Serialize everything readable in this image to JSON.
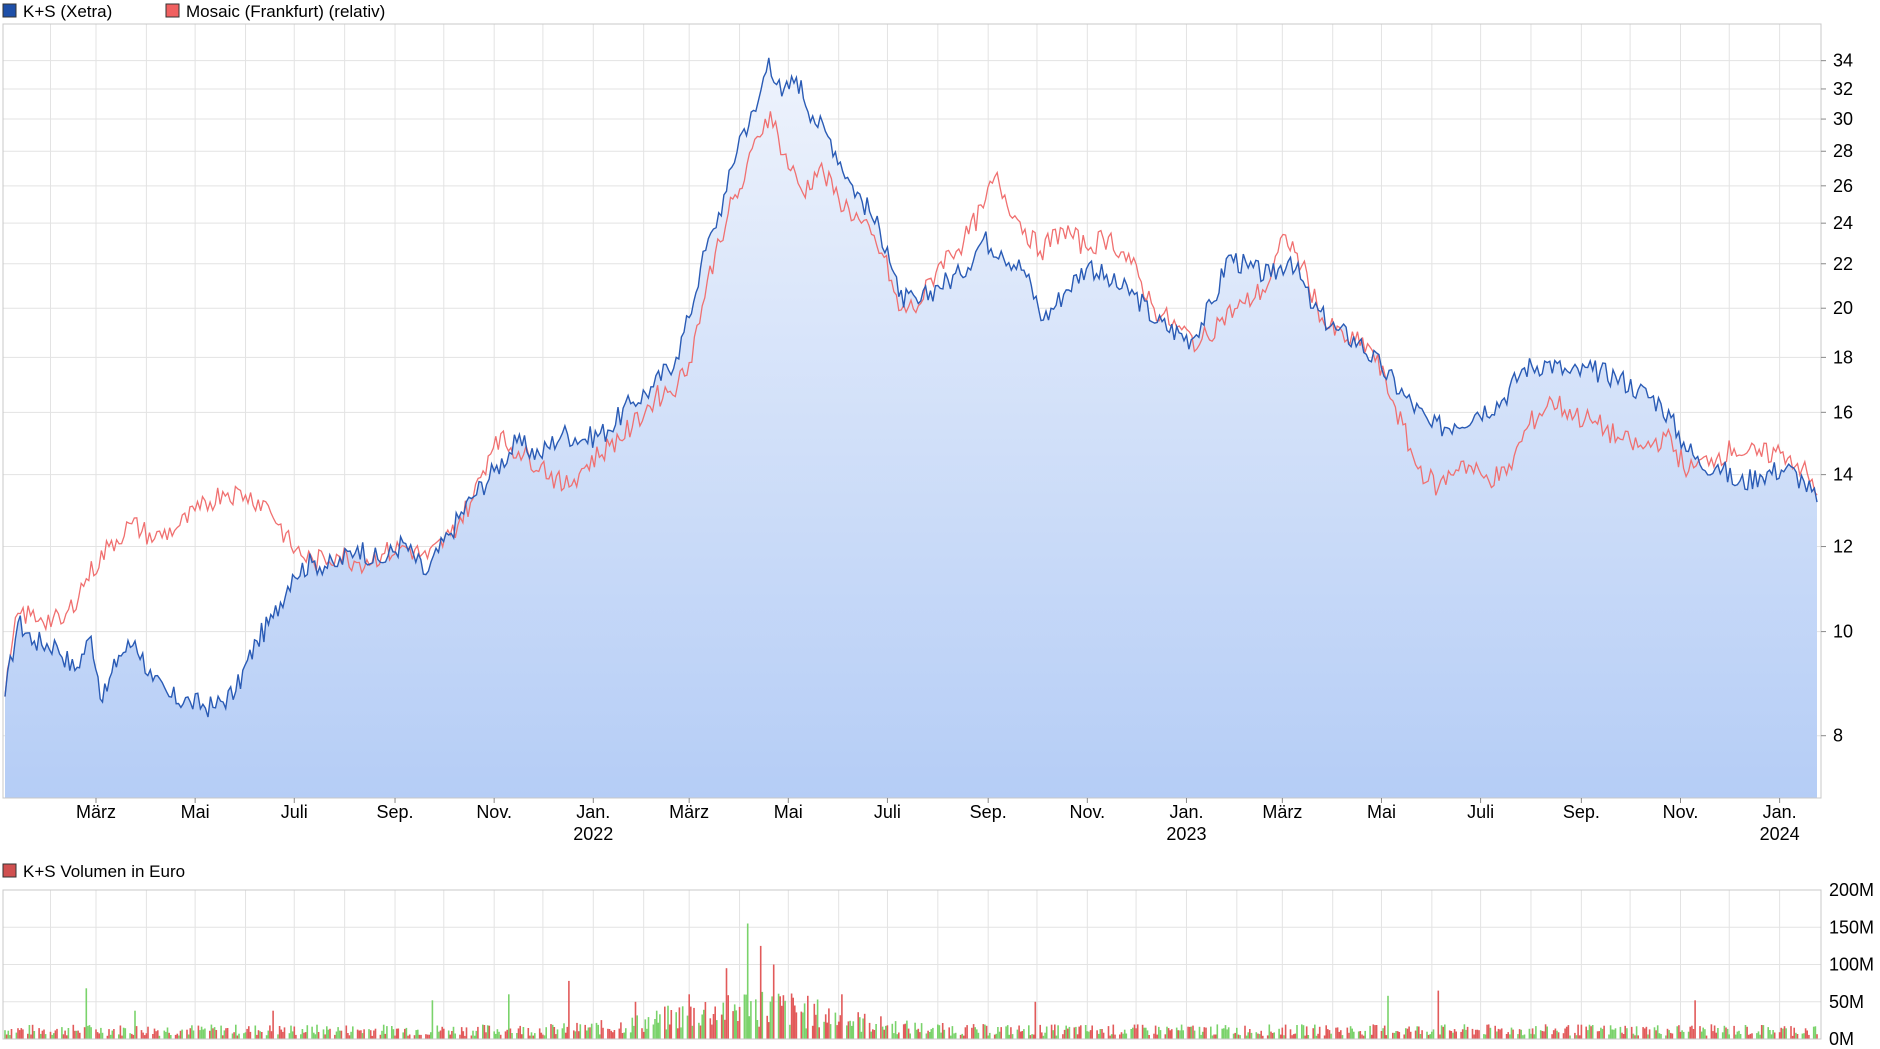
{
  "legend": {
    "series1": "K+S (Xetra)",
    "series2": "Mosaic (Frankfurt) (relativ)",
    "volume": "K+S Volumen in Euro"
  },
  "colors": {
    "series1_line": "#2a5bb5",
    "series1_box": "#1e4fa8",
    "series2_line": "#f07070",
    "series2_box": "#f06060",
    "volume_box": "#d05050",
    "area_top": "#eef3fc",
    "area_bottom": "#b5cdf6",
    "grid": "#e3e3e3",
    "volume_up": "#7ad36b",
    "volume_down": "#e25a5a"
  },
  "chart_data": [
    {
      "type": "line",
      "title": "",
      "scale": "log",
      "ylim": [
        7,
        36
      ],
      "y_ticks": [
        8,
        10,
        12,
        14,
        16,
        18,
        20,
        22,
        24,
        26,
        28,
        30,
        32,
        34
      ],
      "grid": true,
      "legend_position": "top-left",
      "x_tick_labels": [
        "März",
        "Mai",
        "Juli",
        "Sep.",
        "Nov.",
        "Jan.",
        "März",
        "Mai",
        "Juli",
        "Sep.",
        "Nov.",
        "Jan.",
        "März",
        "Mai",
        "Juli",
        "Sep.",
        "Nov.",
        "Jan."
      ],
      "x_year_labels": [
        {
          "under": 5,
          "label": "2022"
        },
        {
          "under": 11,
          "label": "2023"
        },
        {
          "under": 17,
          "label": "2024"
        }
      ],
      "x_range": [
        "2021-01-04",
        "2024-01-24"
      ],
      "x_tick_dates": [
        "2021-03-01",
        "2021-05-01",
        "2021-07-01",
        "2021-09-01",
        "2021-11-01",
        "2022-01-01",
        "2022-03-01",
        "2022-05-01",
        "2022-07-01",
        "2022-09-01",
        "2022-11-01",
        "2023-01-01",
        "2023-03-01",
        "2023-05-01",
        "2023-07-01",
        "2023-09-01",
        "2023-11-01",
        "2024-01-01"
      ],
      "series": [
        {
          "name": "K+S (Xetra)",
          "style": "line-with-area",
          "points": [
            [
              "2021-01-04",
              8.7
            ],
            [
              "2021-01-12",
              10.2
            ],
            [
              "2021-01-22",
              9.8
            ],
            [
              "2021-02-05",
              9.7
            ],
            [
              "2021-02-16",
              9.2
            ],
            [
              "2021-02-26",
              9.9
            ],
            [
              "2021-03-05",
              8.6
            ],
            [
              "2021-03-15",
              9.5
            ],
            [
              "2021-03-25",
              9.8
            ],
            [
              "2021-04-05",
              9.0
            ],
            [
              "2021-04-15",
              8.7
            ],
            [
              "2021-04-28",
              8.6
            ],
            [
              "2021-05-12",
              8.5
            ],
            [
              "2021-05-26",
              8.8
            ],
            [
              "2021-06-08",
              9.8
            ],
            [
              "2021-06-18",
              10.3
            ],
            [
              "2021-06-30",
              11.3
            ],
            [
              "2021-07-12",
              11.6
            ],
            [
              "2021-07-26",
              11.5
            ],
            [
              "2021-08-09",
              12.0
            ],
            [
              "2021-08-23",
              11.6
            ],
            [
              "2021-09-06",
              12.1
            ],
            [
              "2021-09-20",
              11.3
            ],
            [
              "2021-10-04",
              12.3
            ],
            [
              "2021-10-18",
              13.3
            ],
            [
              "2021-11-01",
              14.1
            ],
            [
              "2021-11-15",
              15.0
            ],
            [
              "2021-11-29",
              14.6
            ],
            [
              "2021-12-13",
              15.3
            ],
            [
              "2021-12-27",
              15.1
            ],
            [
              "2022-01-10",
              15.4
            ],
            [
              "2022-01-24",
              16.3
            ],
            [
              "2022-02-07",
              16.9
            ],
            [
              "2022-02-21",
              18.0
            ],
            [
              "2022-03-01",
              19.6
            ],
            [
              "2022-03-08",
              21.8
            ],
            [
              "2022-03-16",
              23.7
            ],
            [
              "2022-03-24",
              25.7
            ],
            [
              "2022-04-01",
              28.9
            ],
            [
              "2022-04-11",
              30.5
            ],
            [
              "2022-04-19",
              34.2
            ],
            [
              "2022-04-27",
              31.5
            ],
            [
              "2022-05-06",
              32.8
            ],
            [
              "2022-05-16",
              30.2
            ],
            [
              "2022-05-27",
              28.7
            ],
            [
              "2022-06-08",
              26.2
            ],
            [
              "2022-06-20",
              24.6
            ],
            [
              "2022-07-01",
              22.8
            ],
            [
              "2022-07-08",
              20.5
            ],
            [
              "2022-07-20",
              20.2
            ],
            [
              "2022-08-01",
              21.0
            ],
            [
              "2022-08-15",
              21.5
            ],
            [
              "2022-08-29",
              23.2
            ],
            [
              "2022-09-09",
              22.6
            ],
            [
              "2022-09-23",
              21.7
            ],
            [
              "2022-10-05",
              19.5
            ],
            [
              "2022-10-19",
              20.8
            ],
            [
              "2022-11-02",
              22.0
            ],
            [
              "2022-11-16",
              21.1
            ],
            [
              "2022-11-30",
              20.6
            ],
            [
              "2022-12-14",
              19.4
            ],
            [
              "2023-01-04",
              18.7
            ],
            [
              "2023-01-18",
              20.3
            ],
            [
              "2023-01-27",
              22.4
            ],
            [
              "2023-02-08",
              21.8
            ],
            [
              "2023-02-22",
              21.4
            ],
            [
              "2023-03-06",
              22.3
            ],
            [
              "2023-03-20",
              20.0
            ],
            [
              "2023-04-03",
              19.1
            ],
            [
              "2023-04-17",
              18.6
            ],
            [
              "2023-05-01",
              17.6
            ],
            [
              "2023-05-15",
              16.6
            ],
            [
              "2023-06-01",
              15.5
            ],
            [
              "2023-06-15",
              15.6
            ],
            [
              "2023-06-29",
              16.0
            ],
            [
              "2023-07-14",
              16.4
            ],
            [
              "2023-07-28",
              17.6
            ],
            [
              "2023-08-11",
              17.8
            ],
            [
              "2023-08-25",
              17.4
            ],
            [
              "2023-09-08",
              17.5
            ],
            [
              "2023-09-22",
              17.3
            ],
            [
              "2023-10-06",
              16.8
            ],
            [
              "2023-10-20",
              16.3
            ],
            [
              "2023-11-03",
              15.0
            ],
            [
              "2023-11-13",
              14.3
            ],
            [
              "2023-11-24",
              14.3
            ],
            [
              "2023-12-06",
              13.7
            ],
            [
              "2023-12-20",
              14.0
            ],
            [
              "2024-01-05",
              14.2
            ],
            [
              "2024-01-16",
              13.8
            ],
            [
              "2024-01-24",
              13.2
            ]
          ]
        },
        {
          "name": "Mosaic (Frankfurt) (relativ)",
          "style": "line",
          "points": [
            [
              "2021-01-04",
              8.7
            ],
            [
              "2021-01-12",
              10.4
            ],
            [
              "2021-01-26",
              10.3
            ],
            [
              "2021-02-09",
              10.2
            ],
            [
              "2021-02-23",
              11.2
            ],
            [
              "2021-03-09",
              12.0
            ],
            [
              "2021-03-23",
              12.6
            ],
            [
              "2021-04-06",
              12.2
            ],
            [
              "2021-04-20",
              12.5
            ],
            [
              "2021-05-04",
              13.0
            ],
            [
              "2021-05-18",
              13.5
            ],
            [
              "2021-06-01",
              13.4
            ],
            [
              "2021-06-15",
              13.1
            ],
            [
              "2021-06-29",
              12.0
            ],
            [
              "2021-07-13",
              11.6
            ],
            [
              "2021-07-27",
              11.8
            ],
            [
              "2021-08-10",
              11.6
            ],
            [
              "2021-08-24",
              11.8
            ],
            [
              "2021-09-07",
              12.0
            ],
            [
              "2021-09-21",
              11.7
            ],
            [
              "2021-10-05",
              12.3
            ],
            [
              "2021-10-19",
              13.3
            ],
            [
              "2021-11-02",
              15.2
            ],
            [
              "2021-11-16",
              14.7
            ],
            [
              "2021-11-30",
              14.3
            ],
            [
              "2021-12-14",
              13.6
            ],
            [
              "2021-12-28",
              14.3
            ],
            [
              "2022-01-11",
              14.9
            ],
            [
              "2022-01-25",
              15.5
            ],
            [
              "2022-02-08",
              16.5
            ],
            [
              "2022-02-22",
              17.0
            ],
            [
              "2022-03-01",
              17.8
            ],
            [
              "2022-03-09",
              20.1
            ],
            [
              "2022-03-17",
              22.5
            ],
            [
              "2022-03-25",
              24.5
            ],
            [
              "2022-04-04",
              26.3
            ],
            [
              "2022-04-12",
              28.9
            ],
            [
              "2022-04-20",
              30.5
            ],
            [
              "2022-04-28",
              27.8
            ],
            [
              "2022-05-10",
              25.6
            ],
            [
              "2022-05-20",
              27.0
            ],
            [
              "2022-06-01",
              25.3
            ],
            [
              "2022-06-15",
              24.0
            ],
            [
              "2022-06-29",
              22.3
            ],
            [
              "2022-07-08",
              19.9
            ],
            [
              "2022-07-20",
              20.1
            ],
            [
              "2022-08-03",
              22.1
            ],
            [
              "2022-08-17",
              23.1
            ],
            [
              "2022-08-29",
              24.8
            ],
            [
              "2022-09-05",
              26.5
            ],
            [
              "2022-09-19",
              24.2
            ],
            [
              "2022-10-03",
              22.6
            ],
            [
              "2022-10-17",
              23.7
            ],
            [
              "2022-10-31",
              22.8
            ],
            [
              "2022-11-14",
              23.3
            ],
            [
              "2022-11-28",
              22.0
            ],
            [
              "2022-12-12",
              20.0
            ],
            [
              "2022-12-26",
              19.2
            ],
            [
              "2023-01-09",
              18.5
            ],
            [
              "2023-01-23",
              19.6
            ],
            [
              "2023-02-06",
              20.2
            ],
            [
              "2023-02-20",
              21.0
            ],
            [
              "2023-03-03",
              23.4
            ],
            [
              "2023-03-13",
              21.9
            ],
            [
              "2023-03-27",
              19.3
            ],
            [
              "2023-04-10",
              18.7
            ],
            [
              "2023-04-24",
              18.4
            ],
            [
              "2023-05-08",
              16.4
            ],
            [
              "2023-05-22",
              14.3
            ],
            [
              "2023-06-05",
              13.6
            ],
            [
              "2023-06-19",
              14.4
            ],
            [
              "2023-07-03",
              13.9
            ],
            [
              "2023-07-17",
              14.0
            ],
            [
              "2023-07-31",
              15.6
            ],
            [
              "2023-08-14",
              16.4
            ],
            [
              "2023-08-28",
              15.9
            ],
            [
              "2023-09-11",
              15.6
            ],
            [
              "2023-09-25",
              15.1
            ],
            [
              "2023-10-09",
              14.8
            ],
            [
              "2023-10-23",
              15.2
            ],
            [
              "2023-11-06",
              14.1
            ],
            [
              "2023-11-20",
              14.5
            ],
            [
              "2023-12-04",
              14.8
            ],
            [
              "2023-12-18",
              14.6
            ],
            [
              "2024-01-03",
              14.7
            ],
            [
              "2024-01-15",
              14.2
            ],
            [
              "2024-01-24",
              13.4
            ]
          ]
        }
      ]
    },
    {
      "type": "bar",
      "title": "K+S Volumen in Euro",
      "ylim": [
        0,
        200000000
      ],
      "y_tick_labels": [
        "200M",
        "150M",
        "100M",
        "50M",
        "0M"
      ],
      "y_tick_values": [
        200000000,
        150000000,
        100000000,
        50000000,
        0
      ],
      "grid": true,
      "x_range": [
        "2021-01-04",
        "2024-01-24"
      ],
      "bars": "daily volume bars (green = up day, red = down day)",
      "typical_value": 12000000,
      "notable_values": [
        [
          "2021-02-23",
          68000000
        ],
        [
          "2021-03-25",
          38000000
        ],
        [
          "2021-06-18",
          38000000
        ],
        [
          "2021-09-24",
          52000000
        ],
        [
          "2021-11-10",
          60000000
        ],
        [
          "2021-12-17",
          78000000
        ],
        [
          "2022-01-27",
          50000000
        ],
        [
          "2022-03-01",
          60000000
        ],
        [
          "2022-03-24",
          95000000
        ],
        [
          "2022-04-06",
          155000000
        ],
        [
          "2022-04-14",
          125000000
        ],
        [
          "2022-04-22",
          100000000
        ],
        [
          "2022-06-03",
          60000000
        ],
        [
          "2022-09-30",
          50000000
        ],
        [
          "2023-05-05",
          58000000
        ],
        [
          "2023-06-05",
          65000000
        ],
        [
          "2023-11-10",
          52000000
        ]
      ]
    }
  ]
}
